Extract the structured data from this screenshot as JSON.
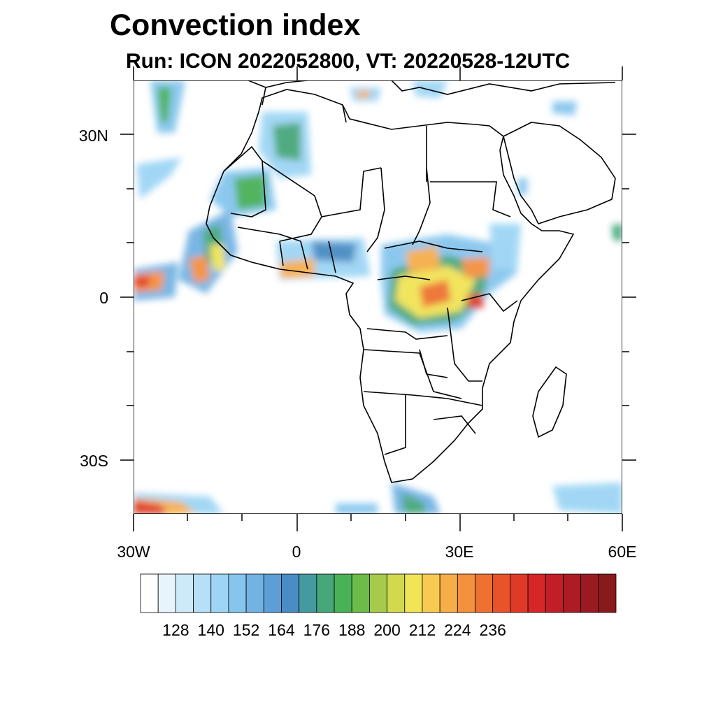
{
  "title": "Convection index",
  "subtitle": "Run: ICON 2022052800,  VT: 20220528-12UTC",
  "map": {
    "lat_labels": [
      "30N",
      "0",
      "30S"
    ],
    "lon_labels": [
      "30W",
      "0",
      "30E",
      "60E"
    ]
  },
  "colorbar": {
    "colors": [
      "#ffffff",
      "#e8f4fb",
      "#cdeaf8",
      "#b6e0f7",
      "#9dd5f4",
      "#86c6ee",
      "#73b3e3",
      "#5c9fd6",
      "#4a8cc4",
      "#459aa0",
      "#46a77a",
      "#49b156",
      "#6cbd48",
      "#a6cb4c",
      "#d3d94f",
      "#f1e456",
      "#f7cb52",
      "#f6ae48",
      "#f4913c",
      "#ef7131",
      "#e8542a",
      "#df3a27",
      "#d52728",
      "#c31d28",
      "#ad1b25",
      "#9a1a22",
      "#881a1c"
    ],
    "labels": [
      "128",
      "140",
      "152",
      "164",
      "176",
      "188",
      "200",
      "212",
      "224",
      "236"
    ]
  }
}
